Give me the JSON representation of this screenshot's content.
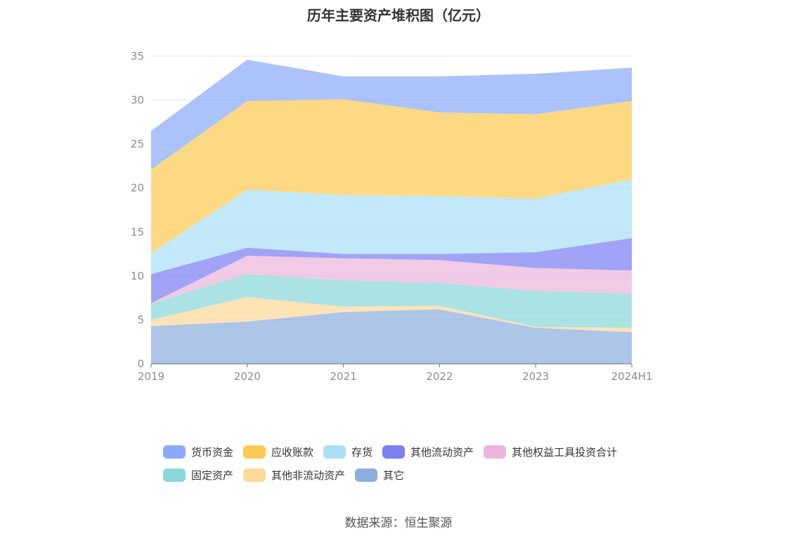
{
  "title": "历年主要资产堆积图（亿元）",
  "source": "数据来源：恒生聚源",
  "chart_data": {
    "type": "area",
    "stacked": true,
    "categories": [
      "2019",
      "2020",
      "2021",
      "2022",
      "2023",
      "2024H1"
    ],
    "ylim": [
      0,
      35
    ],
    "yticks": [
      "0",
      "5",
      "10",
      "15",
      "20",
      "25",
      "30",
      "35"
    ],
    "grid": true,
    "legend_position": "bottom",
    "series": [
      {
        "name": "其它",
        "color": "#8eaede",
        "values": [
          4.3,
          4.8,
          5.9,
          6.2,
          4.1,
          3.6
        ]
      },
      {
        "name": "其他非流动资产",
        "color": "#fdd89b",
        "values": [
          0.7,
          2.8,
          0.6,
          0.4,
          0.1,
          0.5
        ]
      },
      {
        "name": "固定资产",
        "color": "#8ad7d8",
        "values": [
          1.9,
          2.6,
          3.0,
          2.6,
          4.1,
          3.9
        ]
      },
      {
        "name": "其他权益工具投资合计",
        "color": "#ebb5dc",
        "values": [
          0.0,
          2.1,
          2.5,
          2.6,
          2.6,
          2.6
        ]
      },
      {
        "name": "其他流动资产",
        "color": "#7b7ff3",
        "values": [
          3.3,
          0.9,
          0.5,
          0.7,
          1.8,
          3.7
        ]
      },
      {
        "name": "存货",
        "color": "#aadff7",
        "values": [
          2.4,
          6.6,
          6.7,
          6.6,
          6.1,
          6.7
        ]
      },
      {
        "name": "应收账款",
        "color": "#fcca55",
        "values": [
          9.5,
          10.1,
          10.9,
          9.5,
          9.6,
          8.9
        ]
      },
      {
        "name": "货币资金",
        "color": "#8aaaf9",
        "values": [
          4.4,
          4.7,
          2.6,
          4.1,
          4.6,
          3.8
        ]
      }
    ]
  },
  "legend": [
    [
      {
        "label": "货币资金",
        "color": "#8aaaf9"
      },
      {
        "label": "应收账款",
        "color": "#fcca55"
      },
      {
        "label": "存货",
        "color": "#aadff7"
      },
      {
        "label": "其他流动资产",
        "color": "#7b7ff3"
      },
      {
        "label": "其他权益工具投资合计",
        "color": "#ebb5dc"
      }
    ],
    [
      {
        "label": "固定资产",
        "color": "#8ad7d8"
      },
      {
        "label": "其他非流动资产",
        "color": "#fdd89b"
      },
      {
        "label": "其它",
        "color": "#8eaede"
      }
    ]
  ]
}
